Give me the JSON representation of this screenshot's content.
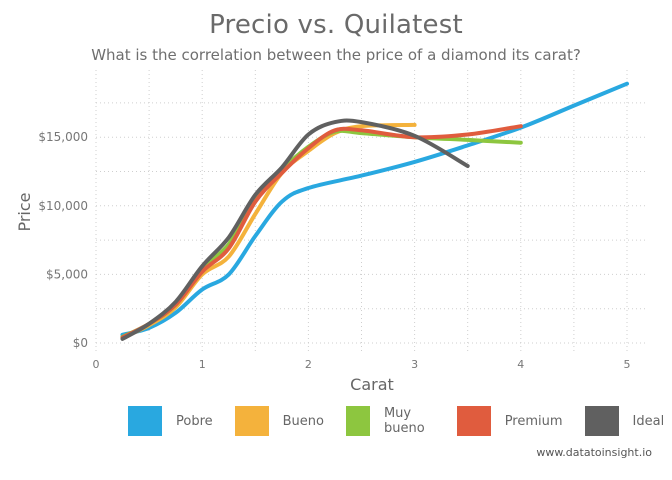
{
  "chart_data": {
    "type": "line",
    "title": "Precio vs. Quilatest",
    "subtitle": "What is the correlation between the price of a diamond its carat?",
    "xlabel": "Carat",
    "ylabel": "Price",
    "xlim": [
      0,
      5.2
    ],
    "ylim": [
      -500,
      19500
    ],
    "x_ticks": [
      0,
      1,
      2,
      3,
      4,
      5
    ],
    "y_ticks": [
      0,
      5000,
      10000,
      15000
    ],
    "y_tick_labels": [
      "$0",
      "$5,000",
      "$10,000",
      "$15,000"
    ],
    "grid": true,
    "legend_position": "bottom",
    "series": [
      {
        "name": "Pobre",
        "color": "#29a8e0",
        "x": [
          0.25,
          0.5,
          0.75,
          1.0,
          1.25,
          1.5,
          1.75,
          2.0,
          2.5,
          3.0,
          3.5,
          4.0,
          4.5,
          5.0
        ],
        "y": [
          600,
          1100,
          2200,
          3900,
          5000,
          7800,
          10300,
          11300,
          12200,
          13200,
          14400,
          15700,
          17300,
          18900
        ]
      },
      {
        "name": "Bueno",
        "color": "#f4b23c",
        "x": [
          0.25,
          0.5,
          0.75,
          1.0,
          1.25,
          1.5,
          1.75,
          2.0,
          2.25,
          2.5,
          3.0
        ],
        "y": [
          400,
          1300,
          2600,
          5000,
          6300,
          9400,
          12400,
          14000,
          15300,
          15800,
          15900
        ]
      },
      {
        "name": "Muy bueno",
        "color": "#8dc63f",
        "x": [
          0.25,
          0.5,
          0.75,
          1.0,
          1.25,
          1.5,
          1.75,
          2.0,
          2.25,
          2.5,
          3.0,
          3.5,
          4.0
        ],
        "y": [
          450,
          1400,
          2800,
          5400,
          7200,
          10400,
          12600,
          14300,
          15400,
          15300,
          15000,
          14800,
          14600
        ]
      },
      {
        "name": "Premium",
        "color": "#e05c3e",
        "x": [
          0.25,
          0.5,
          0.75,
          1.0,
          1.25,
          1.5,
          1.75,
          2.0,
          2.25,
          2.5,
          3.0,
          3.5,
          4.0
        ],
        "y": [
          400,
          1400,
          2800,
          5200,
          6900,
          10300,
          12400,
          14200,
          15500,
          15500,
          15000,
          15200,
          15800
        ]
      },
      {
        "name": "Ideal",
        "color": "#606060",
        "x": [
          0.25,
          0.5,
          0.75,
          1.0,
          1.25,
          1.5,
          1.75,
          2.0,
          2.25,
          2.5,
          3.0,
          3.5
        ],
        "y": [
          300,
          1400,
          3000,
          5600,
          7700,
          10800,
          12800,
          15200,
          16100,
          16100,
          15100,
          12900
        ]
      }
    ]
  },
  "credit": "www.datatoinsight.io"
}
